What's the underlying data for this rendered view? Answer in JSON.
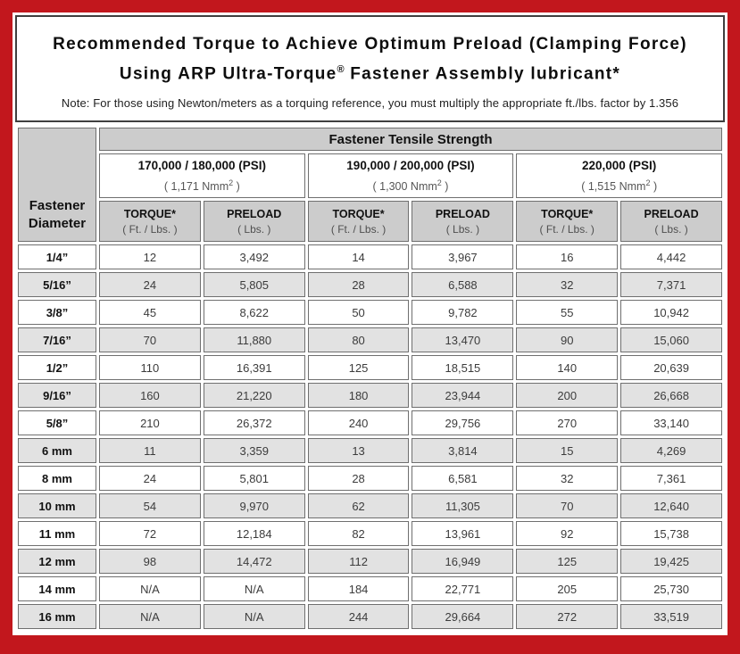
{
  "colors": {
    "border_red": "#c2171d",
    "header_gray": "#cccccc",
    "alt_row_gray": "#e2e2e2"
  },
  "header": {
    "title_line1": "Recommended Torque to Achieve Optimum Preload (Clamping Force)",
    "title_line2_prefix": "Using ARP Ultra-Torque",
    "title_line2_sup": "®",
    "title_line2_suffix": " Fastener Assembly lubricant*",
    "note": "Note: For those using Newton/meters as a torquing reference, you must multiply the appropriate ft./lbs. factor by 1.356"
  },
  "table": {
    "tensile_header": "Fastener Tensile Strength",
    "diameter_header_line1": "Fastener",
    "diameter_header_line2": "Diameter",
    "strength_groups": [
      {
        "psi": "170,000 / 180,000 (PSI)",
        "nmm_prefix": "( 1,171 Nmm",
        "nmm_sup": "2",
        "nmm_suffix": " )"
      },
      {
        "psi": "190,000 / 200,000 (PSI)",
        "nmm_prefix": "( 1,300 Nmm",
        "nmm_sup": "2",
        "nmm_suffix": " )"
      },
      {
        "psi": "220,000 (PSI)",
        "nmm_prefix": "( 1,515 Nmm",
        "nmm_sup": "2",
        "nmm_suffix": " )"
      }
    ],
    "col_headers": [
      {
        "title": "TORQUE*",
        "unit": "( Ft. / Lbs. )"
      },
      {
        "title": "PRELOAD",
        "unit": "( Lbs. )"
      },
      {
        "title": "TORQUE*",
        "unit": "( Ft. / Lbs. )"
      },
      {
        "title": "PRELOAD",
        "unit": "( Lbs. )"
      },
      {
        "title": "TORQUE*",
        "unit": "( Ft. / Lbs. )"
      },
      {
        "title": "PRELOAD",
        "unit": "( Lbs. )"
      }
    ],
    "rows": [
      {
        "diameter": "1/4”",
        "values": [
          "12",
          "3,492",
          "14",
          "3,967",
          "16",
          "4,442"
        ]
      },
      {
        "diameter": "5/16”",
        "values": [
          "24",
          "5,805",
          "28",
          "6,588",
          "32",
          "7,371"
        ]
      },
      {
        "diameter": "3/8”",
        "values": [
          "45",
          "8,622",
          "50",
          "9,782",
          "55",
          "10,942"
        ]
      },
      {
        "diameter": "7/16”",
        "values": [
          "70",
          "11,880",
          "80",
          "13,470",
          "90",
          "15,060"
        ]
      },
      {
        "diameter": "1/2”",
        "values": [
          "110",
          "16,391",
          "125",
          "18,515",
          "140",
          "20,639"
        ]
      },
      {
        "diameter": "9/16”",
        "values": [
          "160",
          "21,220",
          "180",
          "23,944",
          "200",
          "26,668"
        ]
      },
      {
        "diameter": "5/8”",
        "values": [
          "210",
          "26,372",
          "240",
          "29,756",
          "270",
          "33,140"
        ]
      },
      {
        "diameter": "6 mm",
        "values": [
          "11",
          "3,359",
          "13",
          "3,814",
          "15",
          "4,269"
        ]
      },
      {
        "diameter": "8 mm",
        "values": [
          "24",
          "5,801",
          "28",
          "6,581",
          "32",
          "7,361"
        ]
      },
      {
        "diameter": "10 mm",
        "values": [
          "54",
          "9,970",
          "62",
          "11,305",
          "70",
          "12,640"
        ]
      },
      {
        "diameter": "11 mm",
        "values": [
          "72",
          "12,184",
          "82",
          "13,961",
          "92",
          "15,738"
        ]
      },
      {
        "diameter": "12 mm",
        "values": [
          "98",
          "14,472",
          "112",
          "16,949",
          "125",
          "19,425"
        ]
      },
      {
        "diameter": "14 mm",
        "values": [
          "N/A",
          "N/A",
          "184",
          "22,771",
          "205",
          "25,730"
        ]
      },
      {
        "diameter": "16 mm",
        "values": [
          "N/A",
          "N/A",
          "244",
          "29,664",
          "272",
          "33,519"
        ]
      }
    ]
  }
}
